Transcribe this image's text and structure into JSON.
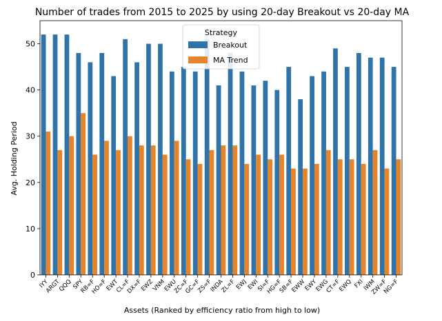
{
  "chart_data": {
    "type": "bar",
    "title": "Number of trades from 2015 to 2025 by using 20-day Breakout vs 20-day MA",
    "xlabel": "Assets (Ranked by efficiency ratio from high to low)",
    "ylabel": "Avg. Holding Period",
    "ylim": [
      0,
      55
    ],
    "yticks": [
      0,
      10,
      20,
      30,
      40,
      50
    ],
    "grid": false,
    "legend": {
      "title": "Strategy",
      "placement": "upper-center"
    },
    "categories": [
      "IYY",
      "ARGT",
      "QQQ",
      "SPY",
      "RB=F",
      "HO=F",
      "EWT",
      "CL=F",
      "DX=F",
      "EWZ",
      "VNM",
      "EWU",
      "ZC=F",
      "GC=F",
      "ZS=F",
      "INDA",
      "ZL=F",
      "EWJ",
      "EWI",
      "SI=F",
      "HG=F",
      "SB=F",
      "EWW",
      "EWY",
      "EWG",
      "CT=F",
      "EWQ",
      "FXI",
      "IWM",
      "ZW=F",
      "NG=F"
    ],
    "series": [
      {
        "name": "Breakout",
        "color": "#2f73a8",
        "values": [
          52,
          52,
          52,
          48,
          46,
          48,
          43,
          51,
          46,
          50,
          50,
          44,
          45,
          44,
          51,
          41,
          48,
          44,
          41,
          42,
          40,
          45,
          38,
          43,
          44,
          49,
          45,
          48,
          47,
          47,
          45
        ]
      },
      {
        "name": "MA Trend",
        "color": "#e5842b",
        "values": [
          31,
          27,
          30,
          35,
          26,
          29,
          27,
          30,
          28,
          28,
          26,
          29,
          25,
          24,
          27,
          28,
          28,
          24,
          26,
          25,
          26,
          23,
          23,
          24,
          27,
          25,
          25,
          24,
          27,
          23,
          25
        ]
      }
    ]
  }
}
